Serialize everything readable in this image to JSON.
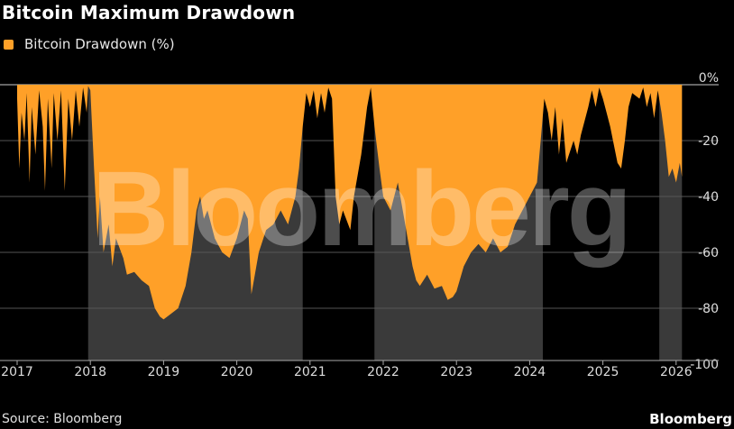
{
  "title": "Bitcoin Maximum Drawdown",
  "legend": {
    "label": "Bitcoin Drawdown (%)"
  },
  "source": "Source: Bloomberg",
  "logo": "Bloomberg",
  "watermark": "Bloomberg",
  "colors": {
    "series": "#ffa028",
    "shade": "#3a3a3a",
    "grid": "#555555",
    "background": "#000000"
  },
  "chart_data": {
    "type": "area",
    "title": "Bitcoin Maximum Drawdown",
    "xlabel": "",
    "ylabel": "",
    "xlim": [
      2017,
      2026.5
    ],
    "ylim": [
      -100,
      0
    ],
    "x_ticks": [
      "2017",
      "2018",
      "2019",
      "2020",
      "2021",
      "2022",
      "2023",
      "2024",
      "2025",
      "2026"
    ],
    "y_ticks": [
      {
        "value": 0,
        "label": "0%"
      },
      {
        "value": -20,
        "label": "-20"
      },
      {
        "value": -40,
        "label": "-40"
      },
      {
        "value": -60,
        "label": "-60"
      },
      {
        "value": -80,
        "label": "-80"
      },
      {
        "value": -100,
        "label": "-100"
      }
    ],
    "grid": true,
    "legend_position": "top-left",
    "shaded_periods": [
      [
        2017.97,
        2020.9
      ],
      [
        2021.88,
        2024.18
      ],
      [
        2025.77,
        2026.08
      ]
    ],
    "series": [
      {
        "name": "Bitcoin Drawdown (%)",
        "x": [
          2017.0,
          2017.03,
          2017.06,
          2017.1,
          2017.13,
          2017.17,
          2017.2,
          2017.25,
          2017.3,
          2017.35,
          2017.38,
          2017.42,
          2017.47,
          2017.5,
          2017.55,
          2017.6,
          2017.65,
          2017.7,
          2017.75,
          2017.8,
          2017.85,
          2017.9,
          2017.95,
          2017.97,
          2018.0,
          2018.05,
          2018.1,
          2018.13,
          2018.18,
          2018.25,
          2018.3,
          2018.35,
          2018.45,
          2018.5,
          2018.6,
          2018.7,
          2018.8,
          2018.88,
          2018.95,
          2019.0,
          2019.1,
          2019.2,
          2019.3,
          2019.38,
          2019.45,
          2019.5,
          2019.55,
          2019.6,
          2019.7,
          2019.8,
          2019.9,
          2020.0,
          2020.1,
          2020.15,
          2020.2,
          2020.3,
          2020.4,
          2020.5,
          2020.6,
          2020.7,
          2020.8,
          2020.85,
          2020.9,
          2020.95,
          2021.0,
          2021.05,
          2021.1,
          2021.15,
          2021.2,
          2021.25,
          2021.3,
          2021.35,
          2021.4,
          2021.45,
          2021.55,
          2021.6,
          2021.7,
          2021.78,
          2021.83,
          2021.88,
          2021.95,
          2022.0,
          2022.1,
          2022.2,
          2022.3,
          2022.4,
          2022.45,
          2022.5,
          2022.6,
          2022.7,
          2022.8,
          2022.88,
          2022.95,
          2023.0,
          2023.1,
          2023.2,
          2023.3,
          2023.4,
          2023.5,
          2023.6,
          2023.7,
          2023.8,
          2023.9,
          2024.0,
          2024.1,
          2024.15,
          2024.2,
          2024.25,
          2024.3,
          2024.35,
          2024.4,
          2024.45,
          2024.5,
          2024.6,
          2024.65,
          2024.7,
          2024.8,
          2024.85,
          2024.9,
          2024.95,
          2025.0,
          2025.05,
          2025.1,
          2025.2,
          2025.25,
          2025.3,
          2025.35,
          2025.4,
          2025.5,
          2025.55,
          2025.6,
          2025.65,
          2025.7,
          2025.75,
          2025.8,
          2025.85,
          2025.9,
          2025.95,
          2026.0,
          2026.05,
          2026.08
        ],
        "values": [
          -5,
          -30,
          -10,
          -20,
          -3,
          -35,
          -8,
          -25,
          -2,
          -15,
          -38,
          -5,
          -30,
          -3,
          -20,
          -2,
          -38,
          -5,
          -20,
          -2,
          -15,
          -1,
          -10,
          -0.5,
          -2,
          -30,
          -55,
          -40,
          -60,
          -50,
          -65,
          -55,
          -62,
          -68,
          -67,
          -70,
          -72,
          -80,
          -83,
          -84,
          -82,
          -80,
          -72,
          -60,
          -45,
          -40,
          -48,
          -45,
          -55,
          -60,
          -62,
          -55,
          -45,
          -48,
          -75,
          -60,
          -52,
          -50,
          -45,
          -50,
          -40,
          -30,
          -15,
          -3,
          -8,
          -2,
          -12,
          -3,
          -10,
          -1,
          -5,
          -40,
          -50,
          -45,
          -52,
          -40,
          -25,
          -8,
          -1,
          -15,
          -30,
          -40,
          -45,
          -35,
          -50,
          -65,
          -70,
          -72,
          -68,
          -73,
          -72,
          -77,
          -76,
          -74,
          -65,
          -60,
          -57,
          -60,
          -55,
          -60,
          -58,
          -50,
          -45,
          -40,
          -35,
          -20,
          -5,
          -10,
          -20,
          -8,
          -25,
          -12,
          -28,
          -20,
          -25,
          -18,
          -8,
          -2,
          -8,
          -1,
          -5,
          -10,
          -15,
          -28,
          -30,
          -20,
          -8,
          -3,
          -5,
          -1,
          -8,
          -3,
          -12,
          -2,
          -10,
          -20,
          -33,
          -30,
          -35,
          -28,
          -33
        ]
      }
    ]
  }
}
